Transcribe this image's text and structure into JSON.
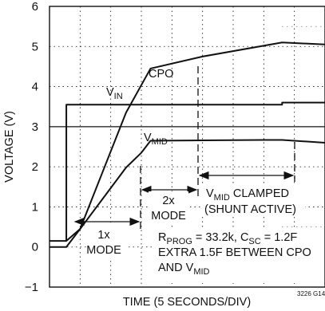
{
  "chart_data": {
    "type": "line",
    "xlabel": "TIME (5 SECONDS/DIV)",
    "ylabel": "VOLTAGE (V)",
    "ylim": [
      -1,
      6
    ],
    "xlim": [
      0,
      9
    ],
    "y_ticks": [
      "−1",
      "0",
      "1",
      "2",
      "3",
      "4",
      "5",
      "6"
    ],
    "y_tick_values": [
      -1,
      0,
      1,
      2,
      3,
      4,
      5,
      6
    ],
    "grid": true,
    "series": [
      {
        "name": "CPO",
        "x": [
          0,
          0.55,
          0.55,
          1.0,
          2.5,
          3.3,
          5.0,
          7.6,
          9.0
        ],
        "y": [
          0.15,
          0.15,
          0.15,
          0.45,
          3.35,
          4.45,
          4.75,
          5.1,
          5.05
        ]
      },
      {
        "name": "VIN",
        "x": [
          0.55,
          0.55,
          7.6,
          7.6,
          9.0
        ],
        "y": [
          0.15,
          3.55,
          3.55,
          3.6,
          3.6
        ]
      },
      {
        "name": "VMID",
        "x": [
          0,
          0.55,
          1.0,
          2.5,
          3.0,
          3.3,
          7.0,
          7.6,
          9.0
        ],
        "y": [
          0.0,
          0.0,
          0.45,
          1.98,
          2.35,
          2.65,
          2.67,
          2.67,
          2.6
        ]
      }
    ],
    "series_labels": {
      "cpo": "CPO",
      "vin_main": "V",
      "vin_sub": "IN",
      "vmid_main": "V",
      "vmid_sub": "MID"
    },
    "annotations": {
      "mode_1x_a": "1x",
      "mode_1x_b": "MODE",
      "mode_2x_a": "2x",
      "mode_2x_b": "MODE",
      "clamp_main": "V",
      "clamp_sub": "MID",
      "clamp_rest": " CLAMPED",
      "shunt": "(SHUNT ACTIVE)",
      "rprog_r": "R",
      "rprog_sub": "PROG",
      "rprog_val": " = 33.2k, C",
      "csc_sub": "SC",
      "csc_val": " = 1.2F",
      "extra_line": "EXTRA 1.5F BETWEEN CPO",
      "and_v": "AND V",
      "and_sub": "MID",
      "figure_code": "3226 G14"
    },
    "colors": {
      "trace": "#111111",
      "grid": "#111111",
      "background": "#ffffff"
    }
  }
}
